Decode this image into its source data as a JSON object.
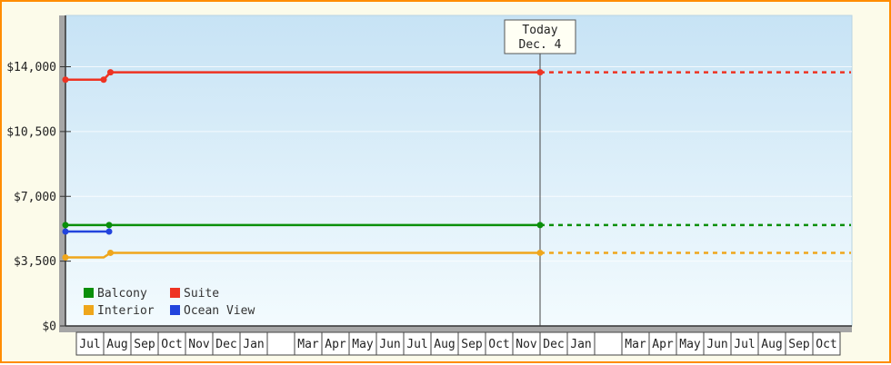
{
  "frame": {
    "border_color": "#ff8c00",
    "background_color": "#fcfbea"
  },
  "chart_data": {
    "type": "line",
    "title": "",
    "xlabel": "",
    "ylabel": "",
    "ylim": [
      0,
      16800
    ],
    "grid": true,
    "plot_background": "blue-gradient",
    "y_axis": {
      "ticks": [
        0,
        3500,
        7000,
        10500,
        14000
      ],
      "labels": [
        "$0",
        "$3,500",
        "$7,000",
        "$10,500",
        "$14,000"
      ]
    },
    "x_axis": {
      "month_cells": [
        "Jul",
        "Aug",
        "Sep",
        "Oct",
        "Nov",
        "Dec",
        "Jan",
        "",
        "Mar",
        "Apr",
        "May",
        "Jun",
        "Jul",
        "Aug",
        "Sep",
        "Oct",
        "Nov",
        "Dec",
        "Jan",
        "",
        "Mar",
        "Apr",
        "May",
        "Jun",
        "Jul",
        "Aug",
        "Sep",
        "Oct"
      ]
    },
    "today": {
      "line1": "Today",
      "line2": "Dec. 4",
      "t": 17
    },
    "series": [
      {
        "name": "Balcony",
        "color": "#0a8f0a",
        "solid": [
          [
            -0.4,
            5450
          ],
          [
            17,
            5450
          ]
        ],
        "dashed": [
          [
            17,
            5450
          ],
          [
            28.4,
            5450
          ]
        ],
        "markers": [
          [
            -0.4,
            5450
          ],
          [
            1.2,
            5450
          ],
          [
            17,
            5450
          ]
        ]
      },
      {
        "name": "Suite",
        "color": "#ee3322",
        "solid": [
          [
            -0.4,
            13300
          ],
          [
            1.0,
            13300
          ],
          [
            1.25,
            13700
          ],
          [
            17,
            13700
          ]
        ],
        "dashed": [
          [
            17,
            13700
          ],
          [
            28.4,
            13700
          ]
        ],
        "markers": [
          [
            -0.4,
            13300
          ],
          [
            1.0,
            13300
          ],
          [
            1.25,
            13700
          ],
          [
            17,
            13700
          ]
        ]
      },
      {
        "name": "Interior",
        "color": "#efa61b",
        "solid": [
          [
            -0.4,
            3700
          ],
          [
            1.0,
            3700
          ],
          [
            1.25,
            3950
          ],
          [
            17,
            3950
          ]
        ],
        "dashed": [
          [
            17,
            3950
          ],
          [
            28.4,
            3950
          ]
        ],
        "markers": [
          [
            -0.4,
            3700
          ],
          [
            1.25,
            3950
          ],
          [
            17,
            3950
          ]
        ]
      },
      {
        "name": "Ocean View",
        "color": "#2244dd",
        "solid": [
          [
            -0.4,
            5100
          ],
          [
            1.2,
            5100
          ]
        ],
        "dashed": [],
        "markers": [
          [
            -0.4,
            5100
          ],
          [
            1.2,
            5100
          ]
        ]
      }
    ],
    "legend": {
      "position": "bottom-left",
      "items": [
        {
          "label": "Balcony",
          "color": "#0a8f0a"
        },
        {
          "label": "Suite",
          "color": "#ee3322"
        },
        {
          "label": "Interior",
          "color": "#efa61b"
        },
        {
          "label": "Ocean View",
          "color": "#2244dd"
        }
      ]
    }
  }
}
